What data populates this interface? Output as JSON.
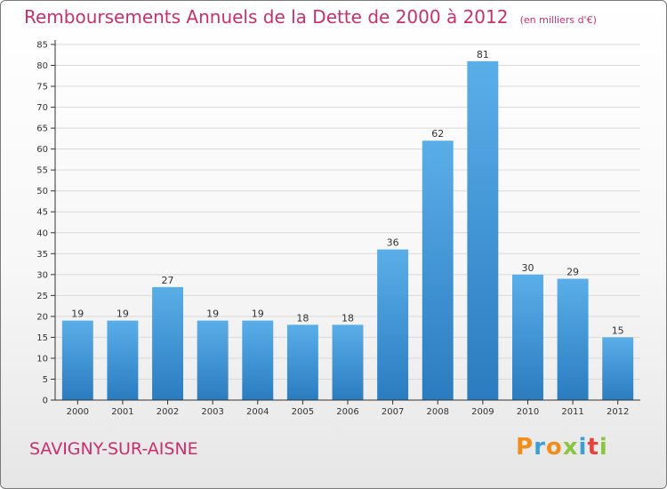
{
  "header": {
    "title": "Remboursements Annuels de la Dette de 2000 à 2012",
    "subtitle": "(en milliers d'€)"
  },
  "footer": {
    "commune": "SAVIGNY-SUR-AISNE",
    "logo_text": "Proxiti"
  },
  "colors": {
    "title": "#c8306c",
    "bar_top": "#5aaee8",
    "bar_bottom": "#2a7cc0",
    "grid": "#d9d9d9",
    "axis": "#333333",
    "logo": [
      "#f28c1a",
      "#3a9fd8",
      "#f28c1a",
      "#8cc63f",
      "#3a9fd8",
      "#e8403a",
      "#8cc63f"
    ]
  },
  "chart_data": {
    "type": "bar",
    "title": "Remboursements Annuels de la Dette de 2000 à 2012",
    "subtitle": "(en milliers d'€)",
    "xlabel": "",
    "ylabel": "",
    "categories": [
      "2000",
      "2001",
      "2002",
      "2003",
      "2004",
      "2005",
      "2006",
      "2007",
      "2008",
      "2009",
      "2010",
      "2011",
      "2012"
    ],
    "values": [
      19,
      19,
      27,
      19,
      19,
      18,
      18,
      36,
      62,
      81,
      30,
      29,
      15
    ],
    "ylim": [
      0,
      85
    ],
    "ytick_step": 5,
    "grid": true,
    "legend": "none",
    "data_labels": true
  }
}
